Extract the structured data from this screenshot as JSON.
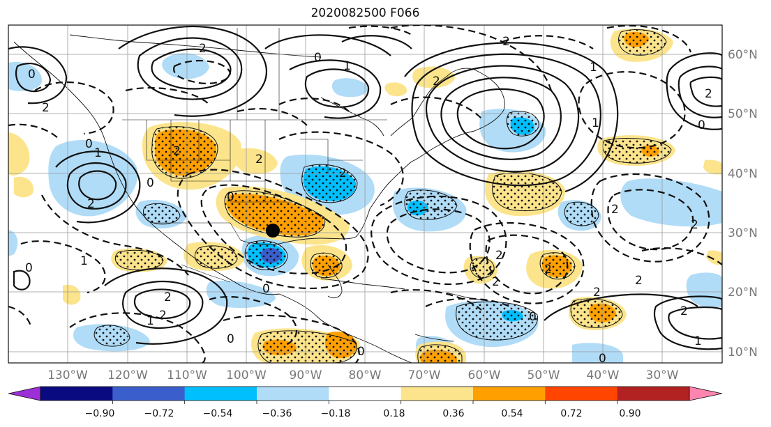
{
  "title": "2020082500 F066",
  "lat_labels": [
    "60°N",
    "50°N",
    "40°N",
    "30°N",
    "20°N",
    "10°N"
  ],
  "lon_labels": [
    "130°W",
    "120°W",
    "110°W",
    "100°W",
    "90°W",
    "80°W",
    "70°W",
    "60°W",
    "50°W",
    "40°W",
    "30°W"
  ],
  "contour_labels": [
    "0",
    "2",
    "0",
    "2",
    "0",
    "1",
    "2",
    "0",
    "1",
    "2",
    "1",
    "2",
    "2",
    "1",
    "2",
    "0",
    "0",
    "2",
    "2",
    "1",
    "0",
    "0",
    "2",
    "1",
    "2",
    "0",
    "2",
    "2",
    "0",
    "2",
    "0",
    "2",
    "2",
    "2",
    "2",
    "1",
    "0",
    "2"
  ],
  "colorbar": {
    "ticks": [
      "−0.90",
      "−0.72",
      "−0.54",
      "−0.36",
      "−0.18",
      "0.18",
      "0.36",
      "0.54",
      "0.72",
      "0.90"
    ],
    "colors": [
      "#9b30d6",
      "#0a0a80",
      "#3a5fcd",
      "#00bfff",
      "#b0dcf7",
      "#ffffff",
      "#fce48c",
      "#ffa000",
      "#ff4500",
      "#b22222",
      "#ff85b0"
    ]
  },
  "marker": {
    "label": "center-point",
    "lat": 30.5,
    "lon": -94.5
  }
}
